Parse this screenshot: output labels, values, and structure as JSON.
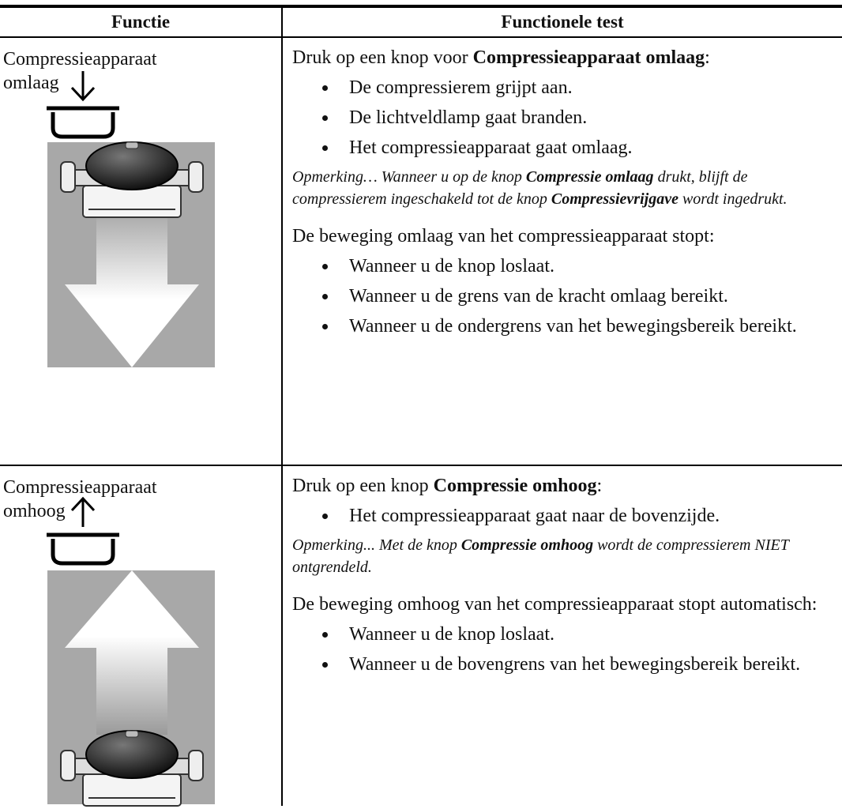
{
  "header": {
    "function": "Functie",
    "test": "Functionele test"
  },
  "rows": [
    {
      "function": "Compressieapparaat omlaag",
      "test": [
        {
          "kind": "p",
          "parts": [
            "Druk op een knop voor ",
            "Compressieapparaat omlaag",
            ":"
          ]
        },
        {
          "kind": "list",
          "items": [
            "De compressierem grijpt aan.",
            "De lichtveldlamp gaat branden.",
            "Het compressieapparaat gaat omlaag."
          ]
        },
        {
          "kind": "note",
          "parts": [
            "Opmerking… Wanneer u op de knop ",
            "Compressie omlaag",
            " drukt, blijft de compressierem ingeschakeld tot de knop ",
            "Compressievrijgave",
            " wordt ingedrukt."
          ]
        },
        {
          "kind": "p",
          "parts": [
            "De beweging omlaag van het compressieapparaat stopt:"
          ]
        },
        {
          "kind": "list",
          "items": [
            "Wanneer u de knop loslaat.",
            "Wanneer u de grens van de kracht omlaag bereikt.",
            "Wanneer u de ondergrens van het bewegingsbereik bereikt."
          ]
        }
      ]
    },
    {
      "function": "Compressieapparaat omhoog",
      "test": [
        {
          "kind": "p",
          "parts": [
            "Druk op een knop ",
            "Compressie omhoog",
            ":"
          ]
        },
        {
          "kind": "list",
          "items": [
            "Het compressieapparaat gaat naar de bovenzijde."
          ]
        },
        {
          "kind": "note",
          "parts": [
            "Opmerking... Met de knop ",
            "Compressie omhoog",
            " wordt de compressierem NIET ontgrendeld."
          ]
        },
        {
          "kind": "p",
          "parts": [
            "De beweging omhoog van het compressieapparaat stopt automatisch:"
          ]
        },
        {
          "kind": "list",
          "items": [
            "Wanneer u de knop loslaat.",
            "Wanneer u de bovengrens van het bewegingsbereik bereikt."
          ]
        }
      ]
    }
  ]
}
